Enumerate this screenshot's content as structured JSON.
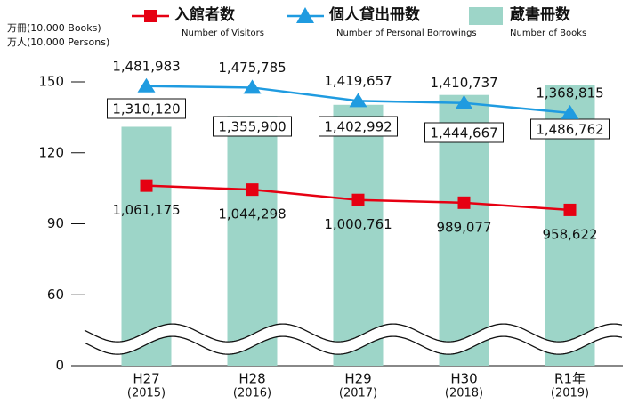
{
  "chart_data": {
    "type": "bar_line",
    "y_axis_labels": [
      "万冊(10,000 Books)",
      "万人(10,000 Persons)"
    ],
    "categories": [
      "H27",
      "H28",
      "H29",
      "H30",
      "R1年"
    ],
    "category_years": [
      "(2015)",
      "(2016)",
      "(2017)",
      "(2018)",
      "(2019)"
    ],
    "series": [
      {
        "name": "入館者数",
        "name_en": "Number of Visitors",
        "kind": "line",
        "marker": "square",
        "color": "#e60012",
        "values": [
          106.1175,
          104.4298,
          100.0761,
          98.9077,
          95.8622
        ],
        "value_labels": [
          "1,061,175",
          "1,044,298",
          "1,000,761",
          "989,077",
          "958,622"
        ]
      },
      {
        "name": "個人貸出冊数",
        "name_en": "Number of Personal Borrowings",
        "kind": "line",
        "marker": "triangle",
        "color": "#1f9be0",
        "values": [
          148.1983,
          147.5785,
          141.9657,
          141.0737,
          136.8815
        ],
        "value_labels": [
          "1,481,983",
          "1,475,785",
          "1,419,657",
          "1,410,737",
          "1,368,815"
        ]
      },
      {
        "name": "蔵書冊数",
        "name_en": "Number of Books",
        "kind": "bar",
        "color": "#9dd5c8",
        "values": [
          131.012,
          135.59,
          140.2992,
          144.4667,
          148.6762
        ],
        "value_labels": [
          "1,310,120",
          "1,355,900",
          "1,402,992",
          "1,444,667",
          "1,486,762"
        ]
      }
    ],
    "ylim": [
      0,
      150
    ],
    "yticks": [
      0,
      60,
      90,
      120,
      150
    ],
    "y_break": true,
    "grid": false
  }
}
